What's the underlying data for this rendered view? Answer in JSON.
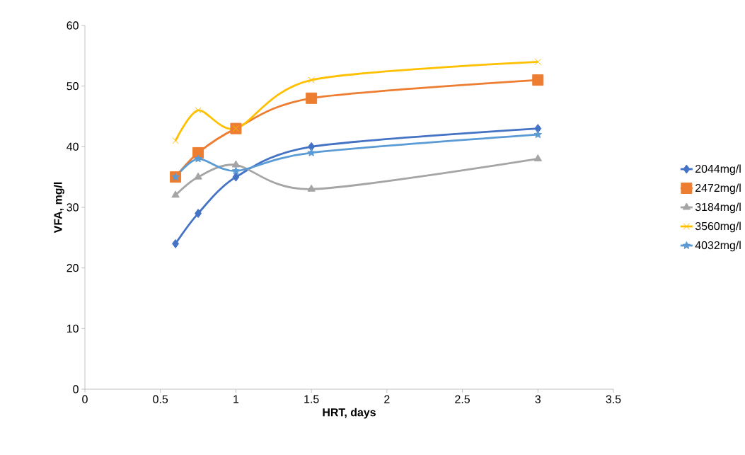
{
  "chart_data": {
    "type": "line",
    "xlabel": "HRT, days",
    "ylabel": "VFA, mg/l",
    "x": [
      0.6,
      0.75,
      1,
      1.5,
      3
    ],
    "series": [
      {
        "name": "2044mg/l",
        "color": "#4472c4",
        "marker": "diamond",
        "values": [
          24,
          29,
          35,
          40,
          43
        ]
      },
      {
        "name": "2472mg/l",
        "color": "#ed7d31",
        "marker": "square",
        "values": [
          35,
          39,
          43,
          48,
          51
        ]
      },
      {
        "name": "3184mg/l",
        "color": "#a5a5a5",
        "marker": "triangle",
        "values": [
          32,
          35,
          37,
          33,
          38
        ]
      },
      {
        "name": "3560mg/l",
        "color": "#ffc000",
        "marker": "cross",
        "values": [
          41,
          46,
          43,
          51,
          54
        ]
      },
      {
        "name": "4032mg/l",
        "color": "#5b9bd5",
        "marker": "star",
        "values": [
          35,
          38,
          36,
          39,
          42
        ]
      }
    ],
    "xlim": [
      0,
      3.5
    ],
    "xticks": [
      0,
      0.5,
      1,
      1.5,
      2,
      2.5,
      3,
      3.5
    ],
    "ylim": [
      0,
      60
    ],
    "yticks": [
      0,
      10,
      20,
      30,
      40,
      50,
      60
    ],
    "grid": false,
    "legend": "right",
    "line_style": "solid"
  }
}
